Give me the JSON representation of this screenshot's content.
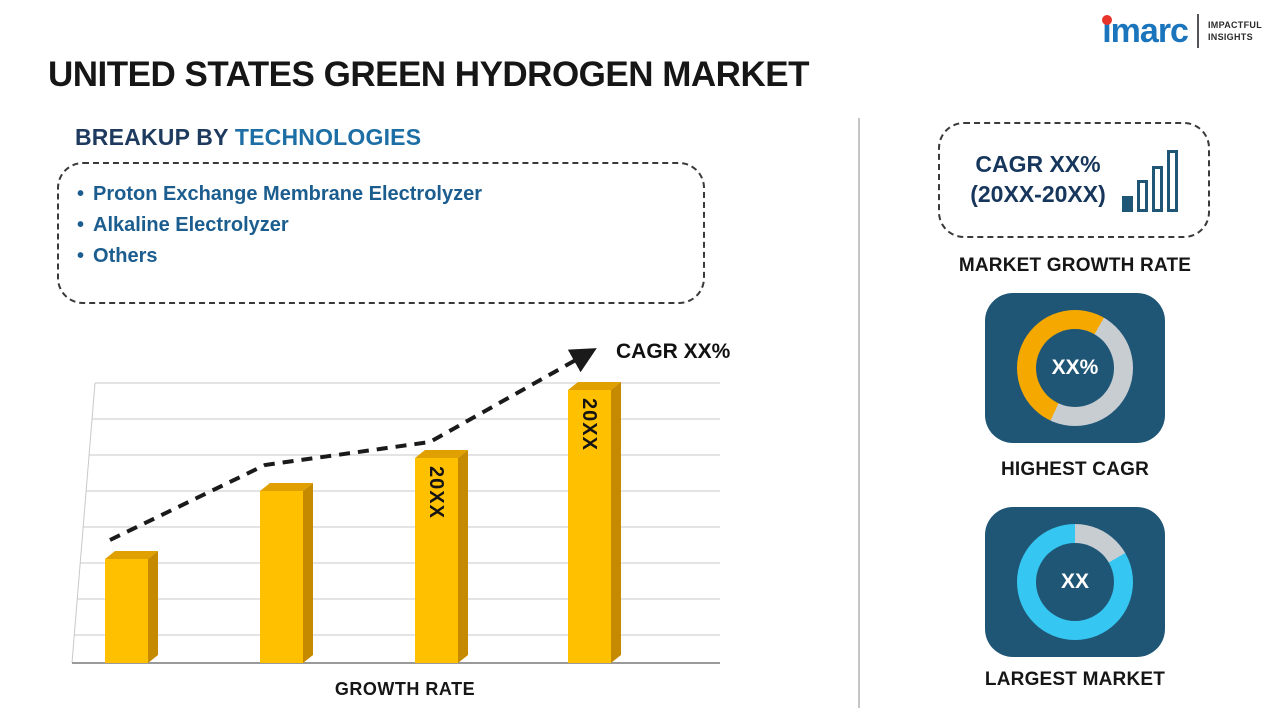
{
  "page": {
    "title": "UNITED STATES GREEN HYDROGEN MARKET"
  },
  "logo": {
    "brand": "imarc",
    "tagline_line1": "IMPACTFUL",
    "tagline_line2": "INSIGHTS"
  },
  "breakup": {
    "heading_prefix": "BREAKUP BY",
    "heading_highlight": "TECHNOLOGIES",
    "bullet": "•",
    "items": [
      "Proton Exchange Membrane Electrolyzer",
      "Alkaline Electrolyzer",
      "Others"
    ]
  },
  "chart_data": {
    "type": "bar",
    "categories": [
      "",
      "",
      "20XX",
      "20XX"
    ],
    "values": [
      38,
      63,
      75,
      100
    ],
    "title": "",
    "xlabel": "GROWTH RATE",
    "ylabel": "",
    "ylim": [
      0,
      100
    ],
    "grid": "horizontal gridlines, 3D perspective floor",
    "legend": [],
    "annotations": [
      "CAGR XX%"
    ],
    "notes": "values are relative bar heights as percent of the tallest bar; rising dashed arrow indicates CAGR trend"
  },
  "sidebar": {
    "growth_box": {
      "line1": "CAGR XX%",
      "line2": "(20XX-20XX)"
    },
    "market_growth_label": "MARKET GROWTH RATE",
    "highest_cagr": {
      "value": "XX%",
      "label": "HIGHEST CAGR"
    },
    "largest_market": {
      "value": "XX",
      "label": "LARGEST MARKET"
    }
  },
  "colors": {
    "brand_blue": "#1B75BC",
    "brand_red": "#E8342A",
    "heading_navy": "#1E3A5F",
    "heading_blue": "#1D6EA5",
    "list_blue": "#1C5D8F",
    "bar_gold": "#FFC000",
    "bar_gold_side": "#C68A00",
    "bar_gold_top": "#DFA000",
    "tile_navy": "#1F5676",
    "donut_gold": "#F5A800",
    "donut_cyan": "#35C7F2",
    "donut_gray": "#C8CDD2"
  }
}
